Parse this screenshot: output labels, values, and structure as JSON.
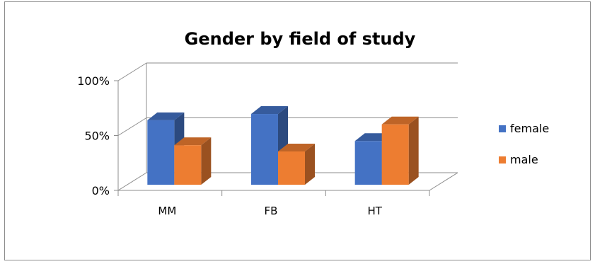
{
  "chart_data": {
    "type": "bar",
    "title": "Gender by field of study",
    "xlabel": "",
    "ylabel": "",
    "categories": [
      "MM",
      "FB",
      "HT"
    ],
    "series": [
      {
        "name": "female",
        "values": [
          62,
          68,
          42
        ],
        "color": "#4472C4"
      },
      {
        "name": "male",
        "values": [
          38,
          32,
          58
        ],
        "color": "#ED7D31"
      }
    ],
    "ylim": [
      0,
      100
    ],
    "yticks": [
      {
        "value": 0,
        "label": "0%"
      },
      {
        "value": 50,
        "label": "50%"
      },
      {
        "value": 100,
        "label": "100%"
      }
    ],
    "grid": true,
    "three_d": true,
    "legend_position": "right"
  }
}
